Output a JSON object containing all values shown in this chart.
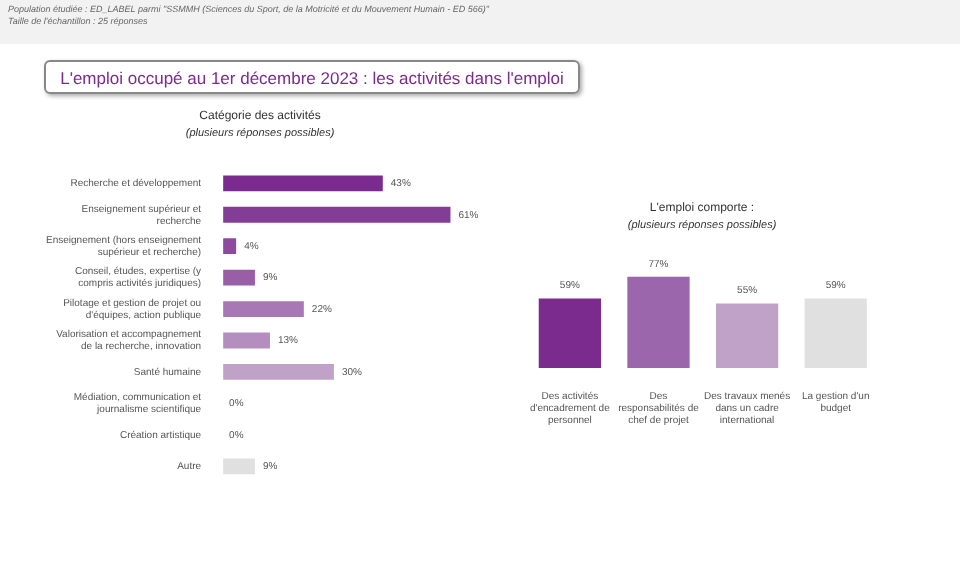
{
  "chart_data": [
    {
      "type": "bar",
      "orientation": "horizontal",
      "title": "Catégorie des activités",
      "subtitle": "(plusieurs réponses possibles)",
      "annotations": [
        "Population étudiée : ED_LABEL parmi \"SSMMH (Sciences du Sport, de la Motricité et du Mouvement Humain - ED 566)\"",
        "Taille de l'échantillon : 25 réponses",
        "L'emploi occupé au 1er décembre 2023 : les activités dans l'emploi"
      ],
      "categories": [
        "Recherche et développement",
        "Enseignement supérieur et recherche",
        "Enseignement (hors enseignement supérieur et recherche)",
        "Conseil, études, expertise (y compris activités juridiques)",
        "Pilotage et gestion de projet ou d'équipes, action publique",
        "Valorisation et accompagnement de la recherche, innovation",
        "Santé humaine",
        "Médiation, communication et journalisme scientifique",
        "Création artistique",
        "Autre"
      ],
      "values": [
        43,
        61,
        4,
        9,
        22,
        13,
        30,
        0,
        0,
        9
      ],
      "value_labels": [
        "43%",
        "61%",
        "4%",
        "9%",
        "22%",
        "13%",
        "30%",
        "0%",
        "0%",
        "9%"
      ],
      "colors": [
        "#7b2a8e",
        "#843d96",
        "#8d4a9e",
        "#9a5ea8",
        "#a877b5",
        "#b48ebf",
        "#c0a2c9",
        "#c8b0d0",
        "#d0bcd6",
        "#e0e0e0"
      ]
    },
    {
      "type": "bar",
      "title": "L'emploi comporte :",
      "subtitle": "(plusieurs réponses possibles)",
      "categories": [
        "Des activités d'encadrement de personnel",
        "Des responsabilités de chef de projet",
        "Des travaux menés dans un cadre international",
        "La gestion d'un budget"
      ],
      "values": [
        59,
        77,
        55,
        59
      ],
      "value_labels": [
        "59%",
        "77%",
        "55%",
        "59%"
      ],
      "colors": [
        "#7b2a8e",
        "#9b66ab",
        "#c0a2c9",
        "#e0e0e0"
      ]
    }
  ]
}
